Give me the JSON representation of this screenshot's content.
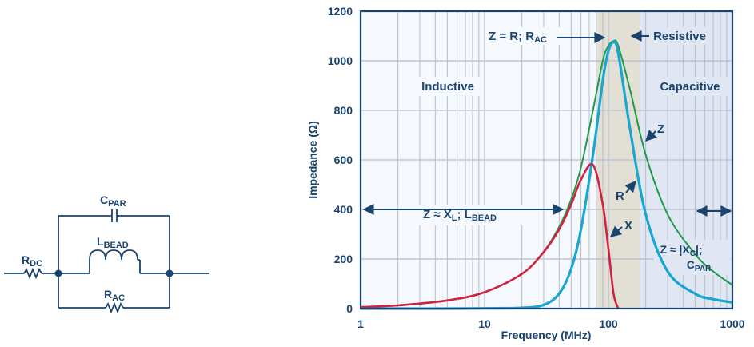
{
  "circuit": {
    "labels": {
      "cpar": {
        "main": "C",
        "sub": "PAR"
      },
      "lbead": {
        "main": "L",
        "sub": "BEAD"
      },
      "rdc": {
        "main": "R",
        "sub": "DC"
      },
      "rac": {
        "main": "R",
        "sub": "AC"
      }
    }
  },
  "colors": {
    "axis": "#1a4470",
    "grid": "#b7bccd",
    "plot_bg": "#f5f9fd",
    "resistive_band": "#e2e0d4",
    "capacitive_region": "#e1e7f2",
    "z_curve": "#1f9a4a",
    "r_curve": "#1aa6d2",
    "x_curve": "#d0213f",
    "annotation": "#1a4470"
  },
  "annotations": {
    "inductive": "Inductive",
    "capacitive": "Capacitive",
    "resistive": "Resistive",
    "z_eq_r": {
      "main": "Z = R; R",
      "sub": "AC"
    },
    "z_xl": {
      "part1": "Z ≈ X",
      "sub1": "L",
      "part2": "; L",
      "sub2": "BEAD"
    },
    "z_xc": {
      "line1_main": "Z ≈ |X",
      "line1_sub": "C",
      "line1_tail": "|;",
      "line2_main": "C",
      "line2_sub": "PAR"
    },
    "curve_z": "Z",
    "curve_r": "R",
    "curve_x": "X"
  },
  "chart_data": {
    "type": "line",
    "title": "",
    "xlabel": "Frequency (MHz)",
    "ylabel": "Impedance (Ω)",
    "xscale": "log",
    "xlim": [
      1,
      1000
    ],
    "ylim": [
      0,
      1200
    ],
    "xticks": [
      "1",
      "10",
      "100",
      "1000"
    ],
    "yticks": [
      "0",
      "200",
      "400",
      "600",
      "800",
      "1000",
      "1200"
    ],
    "grid": true,
    "regions": [
      {
        "name": "Inductive",
        "x_range": [
          1,
          80
        ]
      },
      {
        "name": "Resistive",
        "x_range": [
          80,
          175
        ]
      },
      {
        "name": "Capacitive",
        "x_range": [
          175,
          1000
        ]
      }
    ],
    "x": [
      1,
      2,
      5,
      10,
      20,
      30,
      40,
      50,
      60,
      75,
      90,
      100,
      110,
      120,
      150,
      200,
      300,
      500,
      700,
      1000
    ],
    "series": [
      {
        "name": "Z",
        "values": [
          6,
          13,
          33,
          66,
          140,
          230,
          330,
          440,
          570,
          800,
          1000,
          1060,
          1080,
          1060,
          880,
          620,
          380,
          220,
          150,
          95
        ]
      },
      {
        "name": "R",
        "values": [
          0,
          0,
          0,
          1,
          3,
          15,
          60,
          160,
          320,
          620,
          920,
          1040,
          1075,
          1030,
          720,
          380,
          150,
          60,
          38,
          25
        ]
      },
      {
        "name": "X",
        "values": [
          6,
          13,
          33,
          66,
          140,
          228,
          320,
          420,
          520,
          580,
          420,
          240,
          60,
          0
        ]
      }
    ]
  }
}
